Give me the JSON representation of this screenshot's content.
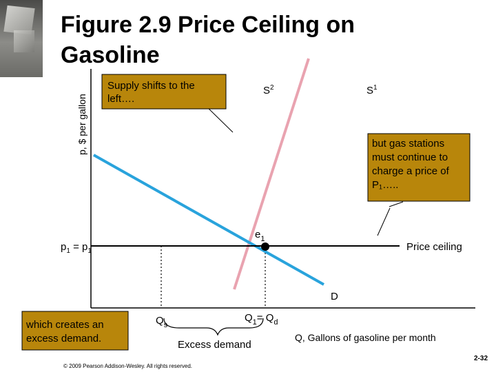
{
  "slide": {
    "title_line1": "Figure 2.9  Price Ceiling on",
    "title_line2": "Gasoline",
    "footer": "© 2009 Pearson Addison-Wesley. All rights reserved.",
    "page_number": "2-32"
  },
  "diagram": {
    "y_axis_label": "p, $ per gallon",
    "x_axis_label": "Q, Gallons of gasoline per month",
    "price_label": "p",
    "price_label_sub": "1",
    "price_label_rest": " = p",
    "price_label_rest_sub": "1",
    "supply_original": "S",
    "supply_original_sup": "1",
    "supply_shifted": "S",
    "supply_shifted_sup": "2",
    "demand": "D",
    "equilibrium": "e",
    "equilibrium_sub": "1",
    "price_ceiling": "Price ceiling",
    "qs": "Q",
    "qs_sub": "s",
    "q1": "Q",
    "q1_sub": "1",
    "q1_mid": "= Q",
    "q1_sub2": "d",
    "excess_demand": "Excess demand",
    "callouts": {
      "supply_shift": [
        "Supply shifts to the",
        "left…."
      ],
      "gas_stations": [
        "but gas stations",
        "must continue to",
        "charge a price of",
        "P₁….."
      ],
      "excess": [
        "which creates an",
        "excess demand."
      ]
    }
  },
  "colors": {
    "supply_line": "#e9a3b0",
    "demand_line": "#29a3dc",
    "callout_fill": "#b8860b",
    "axis": "#000000"
  }
}
